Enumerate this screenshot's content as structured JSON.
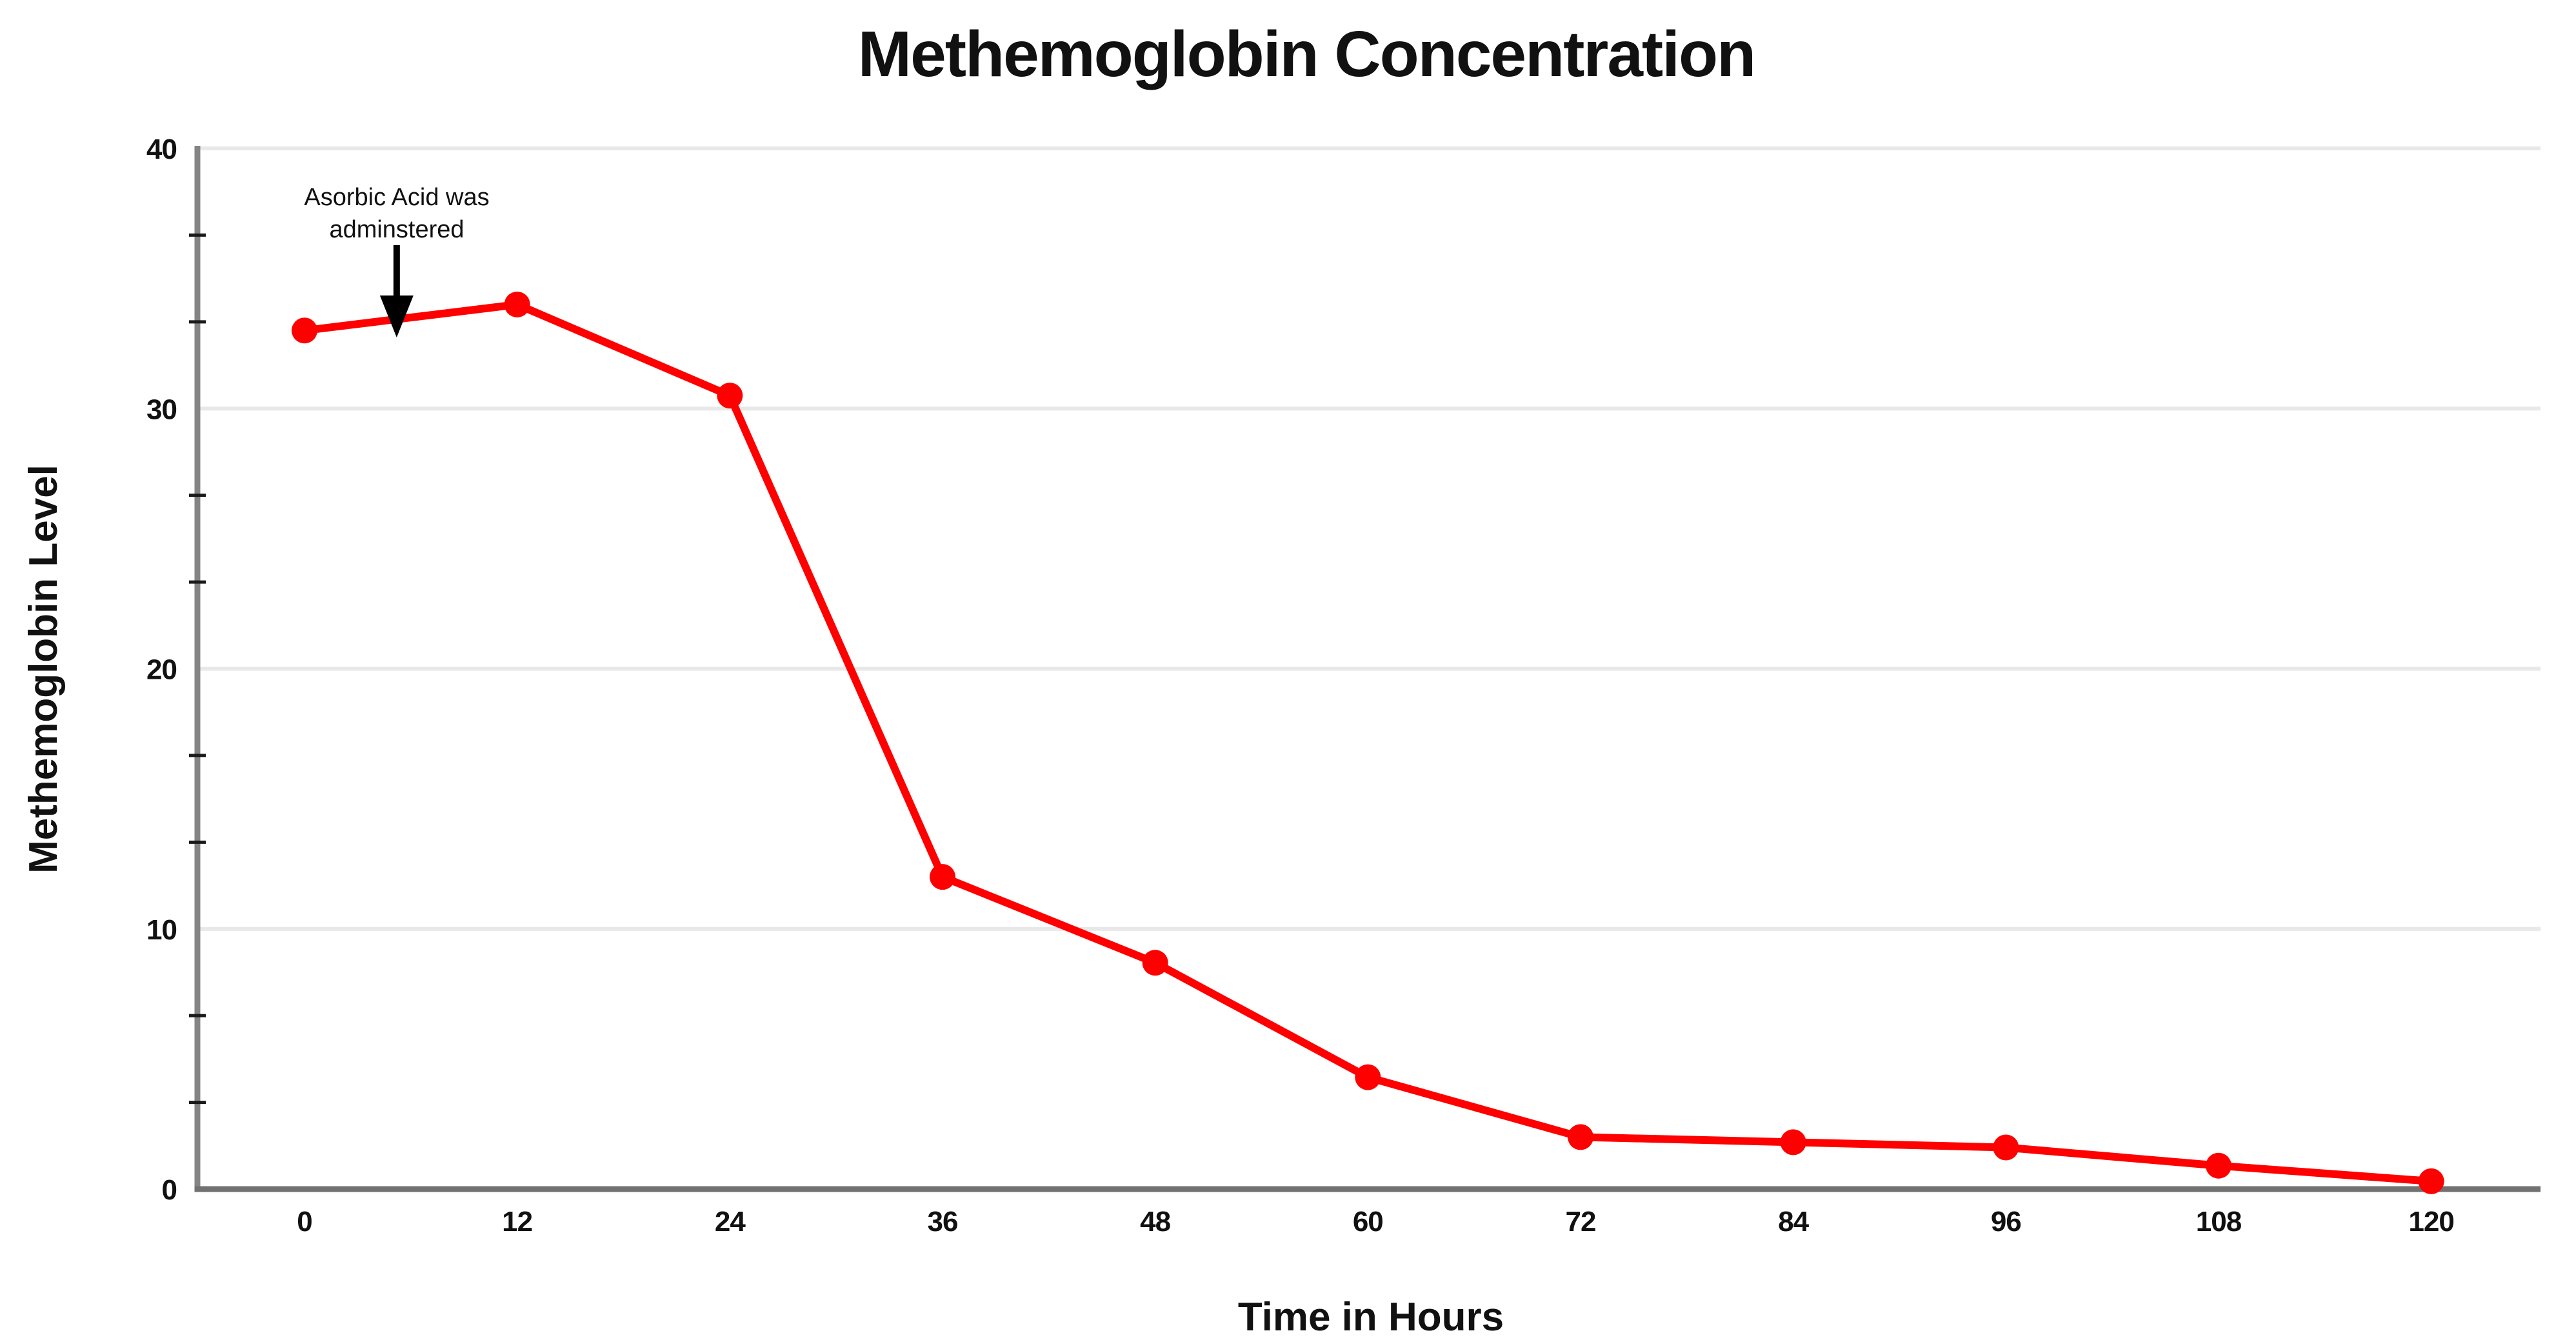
{
  "page": {
    "background_color": "#ffffff"
  },
  "chart_data": {
    "type": "line",
    "title": "Methemoglobin Concentration",
    "xlabel": "Time in Hours",
    "ylabel": "Methemoglobin Level",
    "x": [
      0,
      12,
      24,
      36,
      48,
      60,
      72,
      84,
      96,
      108,
      120
    ],
    "series": [
      {
        "name": "Methemoglobin Level",
        "values": [
          33,
          34,
          30.5,
          12,
          8.7,
          4.3,
          2,
          1.8,
          1.6,
          0.9,
          0.3
        ]
      }
    ],
    "x_tick_labels": [
      "0",
      "12",
      "24",
      "36",
      "48",
      "60",
      "72",
      "84",
      "96",
      "108",
      "120"
    ],
    "y_major_ticks": [
      0,
      10,
      20,
      30,
      40
    ],
    "y_minor_tick_interval": 3.3333,
    "xlim": [
      -6,
      126
    ],
    "ylim": [
      0,
      40
    ],
    "grid": "horizontal-major",
    "legend": "none",
    "marker": "filled-circle",
    "line_color": "#ff0000",
    "marker_color": "#ff0000",
    "axis_color_y": "#848484",
    "axis_color_x": "#717171",
    "gridline_color": "#e8e8e8",
    "tick_color": "#1a1a1a",
    "annotation": {
      "line1": "Asorbic Acid was",
      "line2": "adminstered",
      "arrow_points_to_hour": 5.2
    }
  }
}
